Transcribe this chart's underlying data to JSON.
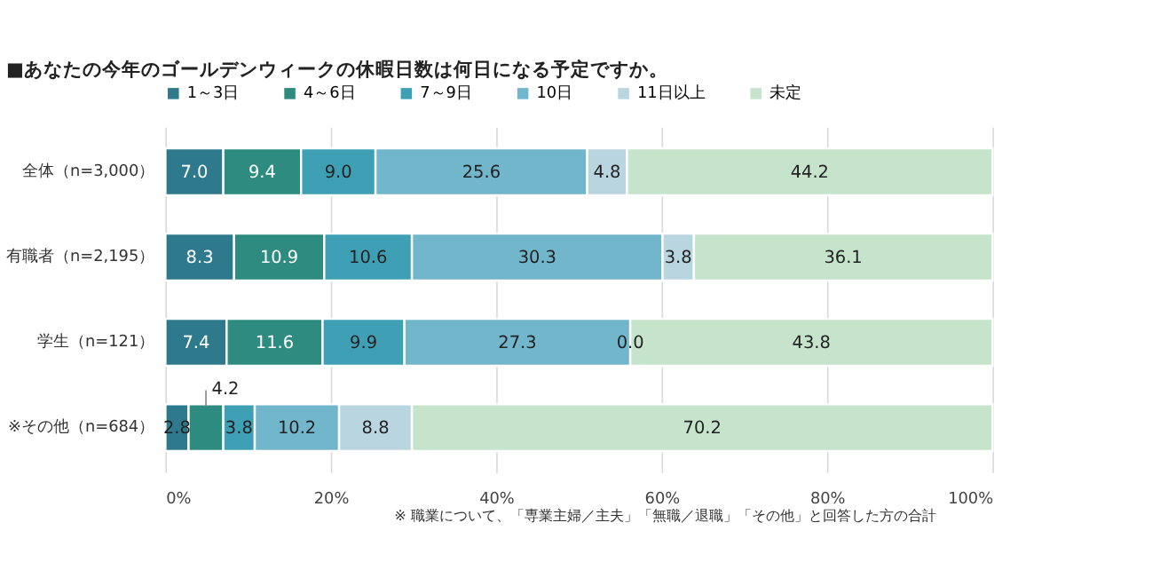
{
  "chart_data": {
    "type": "bar",
    "orientation": "horizontal",
    "stacked": true,
    "title": "■あなたの今年のゴールデンウィークの休暇日数は何日になる予定ですか。",
    "categories": [
      "全体（n=3,000）",
      "有職者（n=2,195）",
      "学生（n=121）",
      "※その他（n=684）"
    ],
    "series": [
      {
        "name": "1～3日",
        "color": "#2e7a8c",
        "values": [
          7.0,
          8.3,
          7.4,
          2.8
        ],
        "value_labels": [
          "7.0",
          "8.3",
          "7.4",
          "2.8"
        ]
      },
      {
        "name": "4～6日",
        "color": "#2e8b80",
        "values": [
          9.4,
          10.9,
          11.6,
          4.2
        ],
        "value_labels": [
          "9.4",
          "10.9",
          "11.6",
          "4.2"
        ]
      },
      {
        "name": "7～9日",
        "color": "#3fa0b5",
        "values": [
          9.0,
          10.6,
          9.9,
          3.8
        ],
        "value_labels": [
          "9.0",
          "10.6",
          "9.9",
          "3.8"
        ]
      },
      {
        "name": "10日",
        "color": "#72b6cc",
        "values": [
          25.6,
          30.3,
          27.3,
          10.2
        ],
        "value_labels": [
          "25.6",
          "30.3",
          "27.3",
          "10.2"
        ]
      },
      {
        "name": "11日以上",
        "color": "#b9d5e0",
        "values": [
          4.8,
          3.8,
          0.0,
          8.8
        ],
        "value_labels": [
          "4.8",
          "3.8",
          "0.0",
          "8.8"
        ]
      },
      {
        "name": "未定",
        "color": "#c6e4cc",
        "values": [
          44.2,
          36.1,
          43.8,
          70.2
        ],
        "value_labels": [
          "44.2",
          "36.1",
          "43.8",
          "70.2"
        ]
      }
    ],
    "xlim": [
      0,
      100
    ],
    "xticks": [
      {
        "value": 0,
        "label": "0%"
      },
      {
        "value": 20,
        "label": "20%"
      },
      {
        "value": 40,
        "label": "40%"
      },
      {
        "value": 60,
        "label": "60%"
      },
      {
        "value": 80,
        "label": "80%"
      },
      {
        "value": 100,
        "label": "100%"
      }
    ],
    "grid": "x",
    "legend": "top",
    "annotations": [
      "※ 職業について、「専業主婦／主夫」「無職／退職」「その他」と回答した方の合計"
    ]
  }
}
